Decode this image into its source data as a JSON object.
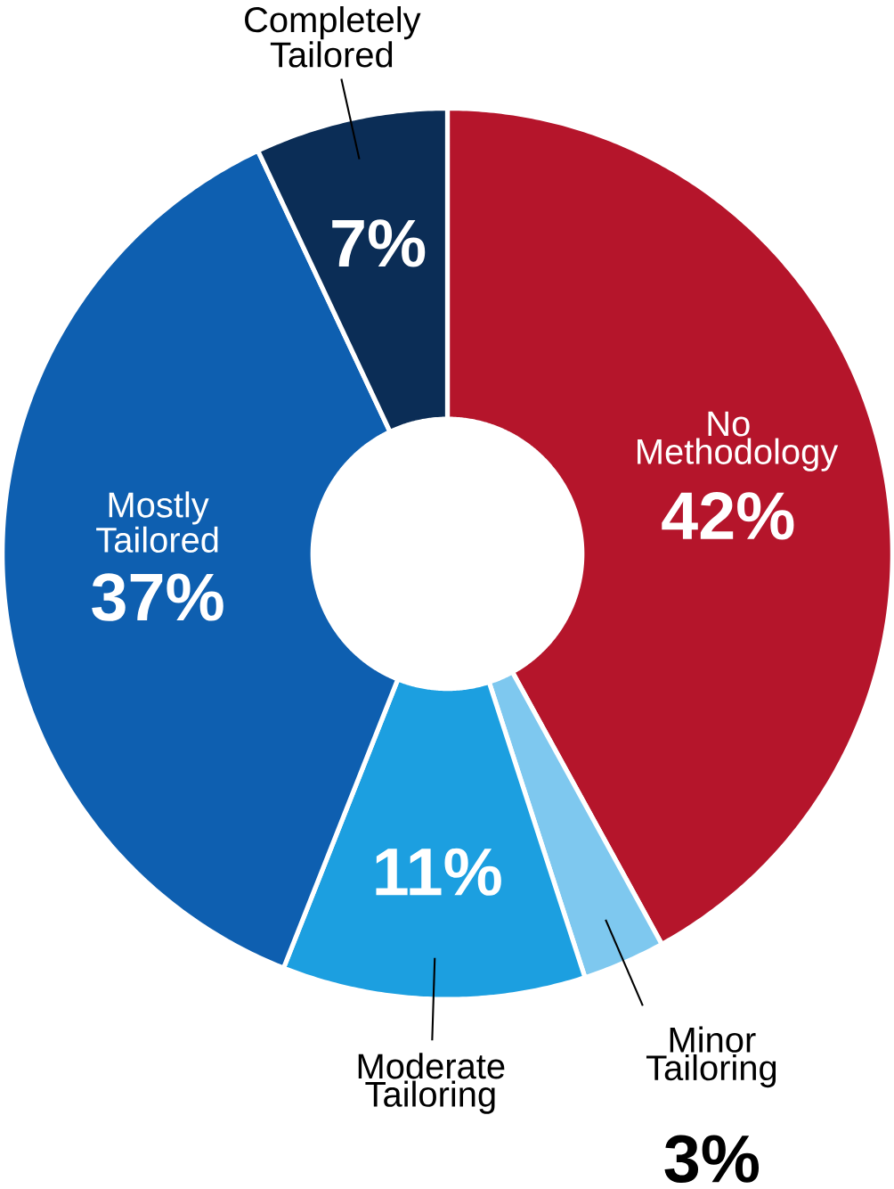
{
  "chart_data": {
    "type": "donut",
    "categories": [
      "No Methodology",
      "Minor Tailoring",
      "Moderate Tailoring",
      "Mostly Tailored",
      "Completely Tailored"
    ],
    "values": [
      42,
      3,
      11,
      37,
      7
    ],
    "value_labels": [
      "42%",
      "3%",
      "11%",
      "37%",
      "7%"
    ],
    "colors": [
      "#b5152b",
      "#7ec8ef",
      "#1c9fe0",
      "#0e5fb0",
      "#0b2d56"
    ]
  }
}
